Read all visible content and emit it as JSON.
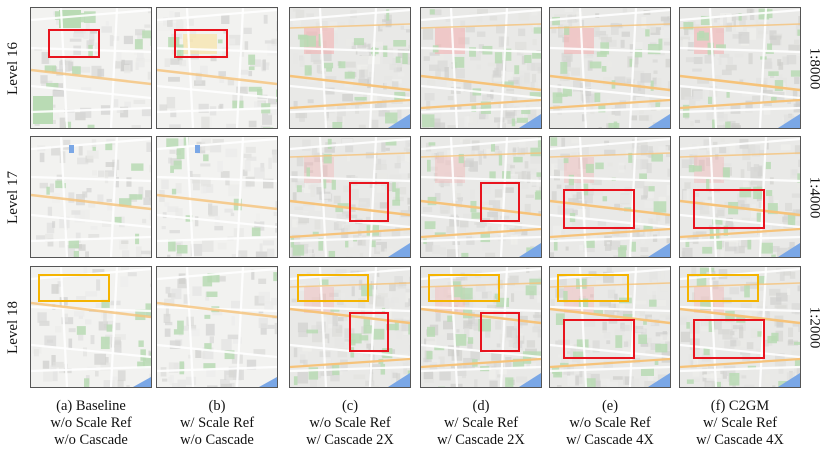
{
  "rows": [
    {
      "label": "Level 16",
      "scale": "1:8000"
    },
    {
      "label": "Level 17",
      "scale": "1:4000"
    },
    {
      "label": "Level 18",
      "scale": "1:2000"
    }
  ],
  "columns": [
    {
      "lines": [
        "(a) Baseline",
        "w/o Scale Ref",
        "w/o Cascade"
      ]
    },
    {
      "lines": [
        "(b)",
        "w/ Scale Ref",
        "w/o Cascade"
      ]
    },
    {
      "lines": [
        "(c)",
        "w/o Scale Ref",
        "w/ Cascade 2X"
      ]
    },
    {
      "lines": [
        "(d)",
        "w/ Scale Ref",
        "w/ Cascade 2X"
      ]
    },
    {
      "lines": [
        "(e)",
        "w/o Scale Ref",
        "w/ Cascade 4X"
      ]
    },
    {
      "lines": [
        "(f) C2GM",
        "w/ Scale Ref",
        "w/ Cascade 4X"
      ]
    }
  ],
  "colors": {
    "red_box": "#e8141e",
    "orange_box": "#f5b400",
    "map_background": "#f2f2f0",
    "park_green": "#b9dbb4",
    "water_blue": "#7aa7e6",
    "road_orange": "#f6c37a",
    "urban_pink": "#f2b7b7"
  },
  "map_style": [
    "sparse",
    "sparse",
    "detailed",
    "detailed",
    "detailed",
    "detailed"
  ]
}
